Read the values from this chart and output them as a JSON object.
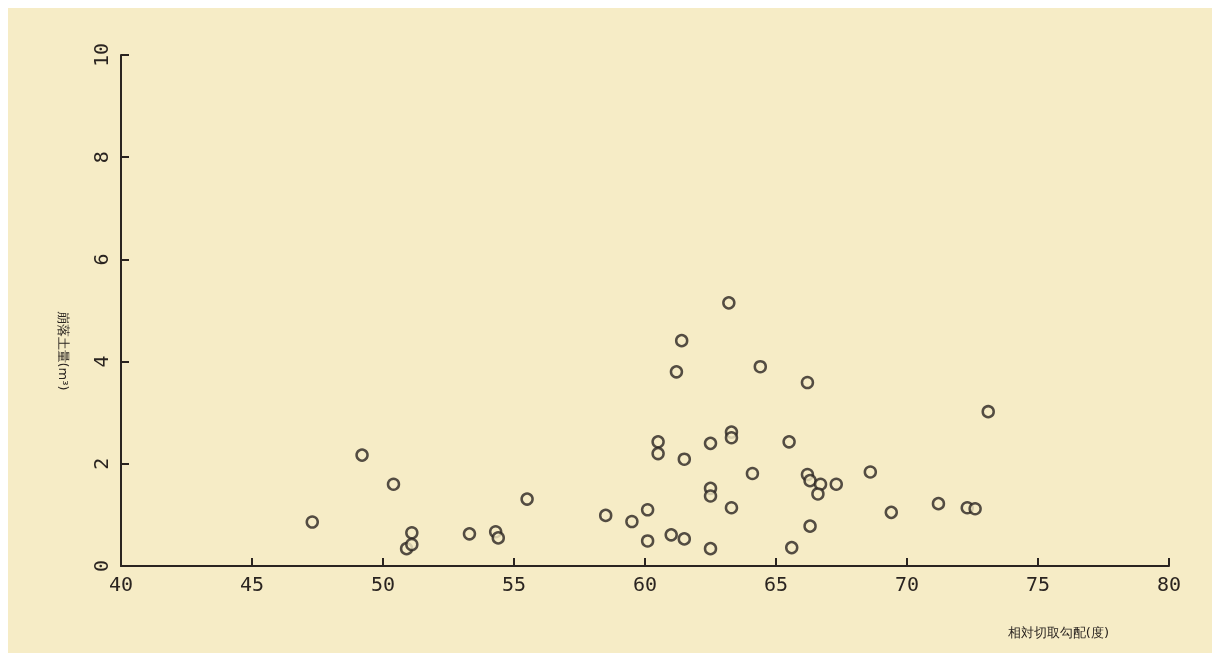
{
  "chart_data": {
    "type": "scatter",
    "xlabel": "相対切取勾配(度)",
    "ylabel": "崩落土量(m³)",
    "x": [
      47.3,
      49.2,
      50.4,
      51.1,
      50.9,
      51.1,
      53.3,
      54.3,
      54.4,
      55.5,
      58.5,
      59.5,
      60.1,
      60.1,
      60.5,
      60.5,
      61.0,
      61.5,
      61.2,
      61.4,
      61.5,
      62.5,
      62.5,
      62.5,
      62.5,
      63.2,
      63.3,
      63.3,
      63.3,
      64.1,
      64.4,
      65.5,
      65.6,
      66.2,
      66.3,
      66.2,
      66.3,
      66.7,
      66.6,
      67.3,
      68.6,
      69.4,
      71.2,
      72.3,
      72.6,
      73.1
    ],
    "values": [
      0.86,
      2.17,
      1.6,
      0.65,
      0.34,
      0.42,
      0.63,
      0.67,
      0.55,
      1.31,
      0.99,
      0.87,
      1.1,
      0.49,
      2.43,
      2.2,
      0.61,
      0.53,
      3.8,
      4.41,
      2.09,
      2.4,
      1.52,
      1.37,
      0.34,
      5.15,
      2.62,
      2.51,
      1.14,
      1.81,
      3.9,
      2.43,
      0.36,
      3.59,
      0.78,
      1.79,
      1.67,
      1.6,
      1.41,
      1.6,
      1.84,
      1.05,
      1.22,
      1.14,
      1.12,
      3.02
    ],
    "color": "#2a2420",
    "marker": "circle",
    "xlim": [
      40,
      80
    ],
    "xticks": [
      40,
      45,
      50,
      55,
      60,
      65,
      70,
      75,
      80
    ],
    "ylim": [
      0,
      10
    ],
    "yticks": [
      0,
      2,
      4,
      6,
      8,
      10
    ]
  }
}
